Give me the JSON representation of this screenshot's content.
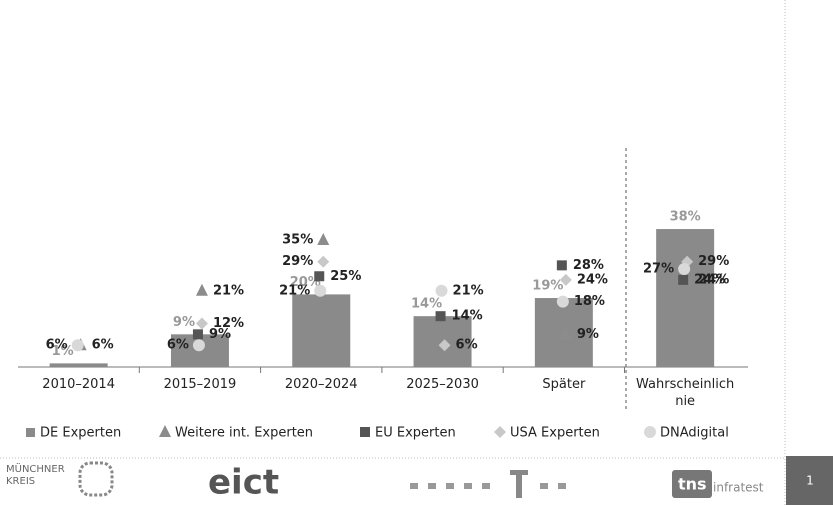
{
  "chart_data": {
    "type": "bar",
    "categories": [
      "2010–2014",
      "2015–2019",
      "2020–2024",
      "2025–2030",
      "Später",
      "Wahrscheinlich nie"
    ],
    "series": [
      {
        "name": "DE Experten",
        "marker": "bar",
        "color": "#8a8a8a",
        "values": [
          1,
          9,
          20,
          14,
          19,
          38
        ],
        "value_labels": [
          "1%",
          "9%",
          "20%",
          "14%",
          "19%",
          "38%"
        ]
      },
      {
        "name": "Weitere int. Experten",
        "marker": "triangle",
        "color": "#8c8c8c",
        "values": [
          6,
          21,
          35,
          null,
          9,
          24
        ],
        "value_labels": [
          "6%",
          "21%",
          "35%",
          null,
          "9%",
          "24%"
        ]
      },
      {
        "name": "EU Experten",
        "marker": "square",
        "color": "#555555",
        "values": [
          null,
          9,
          25,
          14,
          28,
          24
        ],
        "value_labels": [
          null,
          "9%",
          "25%",
          "14%",
          "28%",
          "24%"
        ]
      },
      {
        "name": "USA Experten",
        "marker": "diamond",
        "color": "#c8c8c8",
        "values": [
          null,
          12,
          29,
          6,
          24,
          29
        ],
        "value_labels": [
          null,
          "12%",
          "29%",
          "6%",
          "24%",
          "29%"
        ]
      },
      {
        "name": "DNAdigital",
        "marker": "circle",
        "color": "#d9d9d9",
        "values": [
          6,
          6,
          21,
          21,
          18,
          27
        ],
        "value_labels": [
          "6%",
          "6%",
          "21%",
          "21%",
          "18%",
          "27%"
        ]
      }
    ]
  },
  "footer": {
    "logos": [
      "MÜNCHNER",
      "KREIS",
      "eict",
      "tns",
      "infratest"
    ],
    "page": "1"
  }
}
